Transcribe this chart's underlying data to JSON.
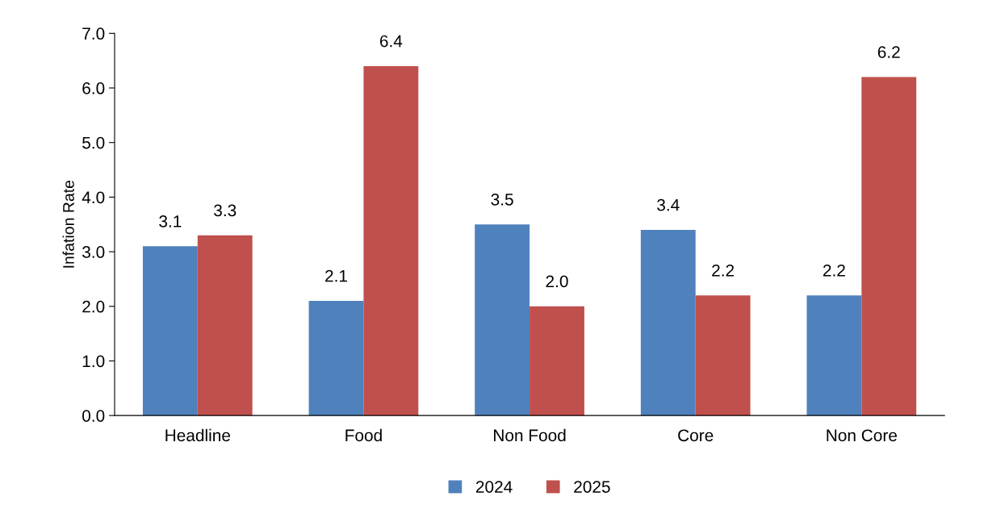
{
  "chart_data": {
    "type": "bar",
    "ylabel": "Infation Rate",
    "categories": [
      "Headline",
      "Food",
      "Non Food",
      "Core",
      "Non Core"
    ],
    "series": [
      {
        "name": "2024",
        "color": "#4f81bd",
        "values": [
          3.1,
          2.1,
          3.5,
          3.4,
          2.2
        ],
        "value_labels": [
          "3.1",
          "2.1",
          "3.5",
          "3.4",
          "2.2"
        ]
      },
      {
        "name": "2025",
        "color": "#c0504d",
        "values": [
          3.3,
          6.4,
          2.0,
          2.2,
          6.2
        ],
        "value_labels": [
          "3.3",
          "6.4",
          "2.0",
          "2.2",
          "6.2"
        ]
      }
    ],
    "ylim": [
      0,
      7
    ],
    "yticks": [
      {
        "value": 0,
        "label": "0.0"
      },
      {
        "value": 1,
        "label": "1.0"
      },
      {
        "value": 2,
        "label": "2.0"
      },
      {
        "value": 3,
        "label": "3.0"
      },
      {
        "value": 4,
        "label": "4.0"
      },
      {
        "value": 5,
        "label": "5.0"
      },
      {
        "value": 6,
        "label": "6.0"
      },
      {
        "value": 7,
        "label": "7.0"
      }
    ],
    "grid": false,
    "legend": "bottom"
  }
}
